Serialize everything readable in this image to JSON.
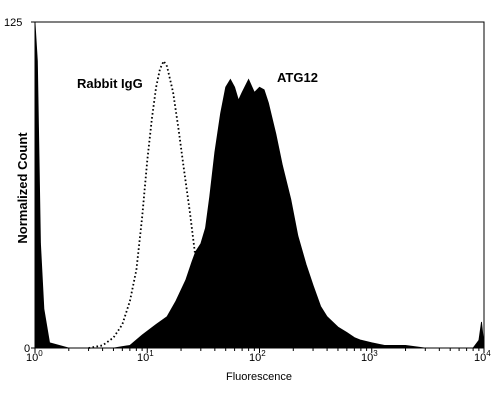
{
  "chart_data": {
    "type": "area",
    "title": "",
    "xlabel": "Fluorescence",
    "ylabel": "Normalized Count",
    "x_scale": "log",
    "xlim": [
      1,
      10000
    ],
    "ylim": [
      0,
      125
    ],
    "x_ticks": [
      {
        "base": "10",
        "exp": "0",
        "value": 1
      },
      {
        "base": "10",
        "exp": "1",
        "value": 10
      },
      {
        "base": "10",
        "exp": "2",
        "value": 100
      },
      {
        "base": "10",
        "exp": "3",
        "value": 1000
      },
      {
        "base": "10",
        "exp": "4",
        "value": 10000
      }
    ],
    "y_ticks": [
      {
        "label": "0",
        "value": 0
      },
      {
        "label": "125",
        "value": 125
      }
    ],
    "grid": false,
    "legend": "none",
    "series": [
      {
        "name": "Rabbit IgG",
        "style": "dotted",
        "color": "#000000",
        "x": [
          3,
          4,
          5,
          6,
          7,
          8,
          9,
          10,
          11,
          12,
          13,
          14,
          15,
          17,
          19,
          21,
          24,
          27,
          30,
          33
        ],
        "y": [
          0,
          1,
          4,
          9,
          18,
          30,
          50,
          72,
          88,
          100,
          107,
          110,
          108,
          98,
          84,
          70,
          52,
          34,
          18,
          5
        ]
      },
      {
        "name": "ATG12",
        "style": "filled",
        "color": "#000000",
        "x": [
          1,
          1.05,
          1.12,
          1.2,
          1.35,
          2,
          3,
          5,
          7,
          9,
          12,
          15,
          18,
          22,
          25,
          27,
          30,
          33,
          36,
          40,
          45,
          50,
          55,
          60,
          65,
          70,
          80,
          90,
          100,
          110,
          120,
          140,
          160,
          190,
          220,
          260,
          300,
          350,
          400,
          500,
          600,
          700,
          800,
          1000,
          1300,
          2000,
          3000,
          5000,
          8000,
          9000,
          9500,
          10000
        ],
        "y": [
          125,
          110,
          40,
          15,
          2,
          0,
          0,
          0,
          1,
          5,
          9,
          12,
          18,
          26,
          33,
          37,
          40,
          46,
          58,
          75,
          90,
          100,
          103,
          100,
          95,
          98,
          103,
          98,
          100,
          99,
          94,
          82,
          70,
          57,
          43,
          32,
          24,
          16,
          12,
          8,
          6,
          4,
          3,
          2,
          1,
          1,
          0,
          0,
          0,
          3,
          10,
          1
        ]
      }
    ],
    "annotations": [
      {
        "text": "Rabbit IgG",
        "series": "Rabbit IgG"
      },
      {
        "text": "ATG12",
        "series": "ATG12"
      }
    ]
  }
}
